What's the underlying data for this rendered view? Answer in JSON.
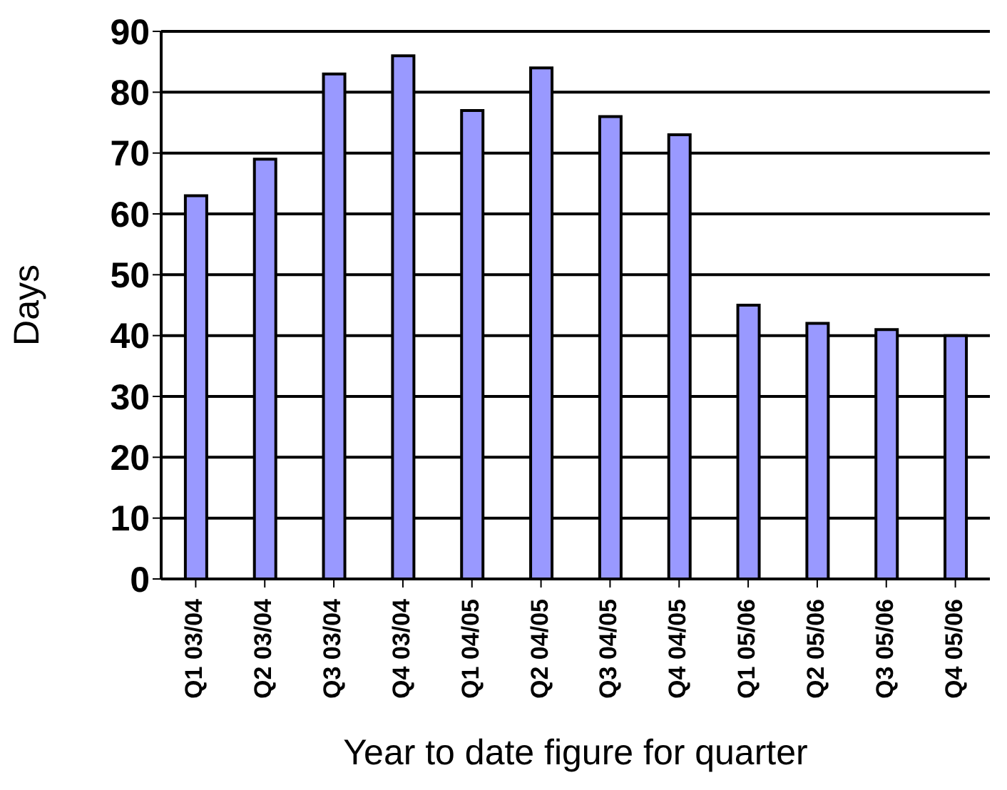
{
  "chart_data": {
    "type": "bar",
    "xlabel": "Year to date figure for quarter",
    "ylabel": "Days",
    "categories": [
      "Q1 03/04",
      "Q2 03/04",
      "Q3 03/04",
      "Q4 03/04",
      "Q1 04/05",
      "Q2 04/05",
      "Q3 04/05",
      "Q4 04/05",
      "Q1 05/06",
      "Q2 05/06",
      "Q3 05/06",
      "Q4 05/06"
    ],
    "values": [
      63,
      69,
      83,
      86,
      77,
      84,
      76,
      73,
      45,
      42,
      41,
      40
    ],
    "color": "#9999ff",
    "ylim": [
      0,
      90
    ],
    "yticks": [
      0,
      10,
      20,
      30,
      40,
      50,
      60,
      70,
      80,
      90
    ],
    "grid": "y"
  }
}
